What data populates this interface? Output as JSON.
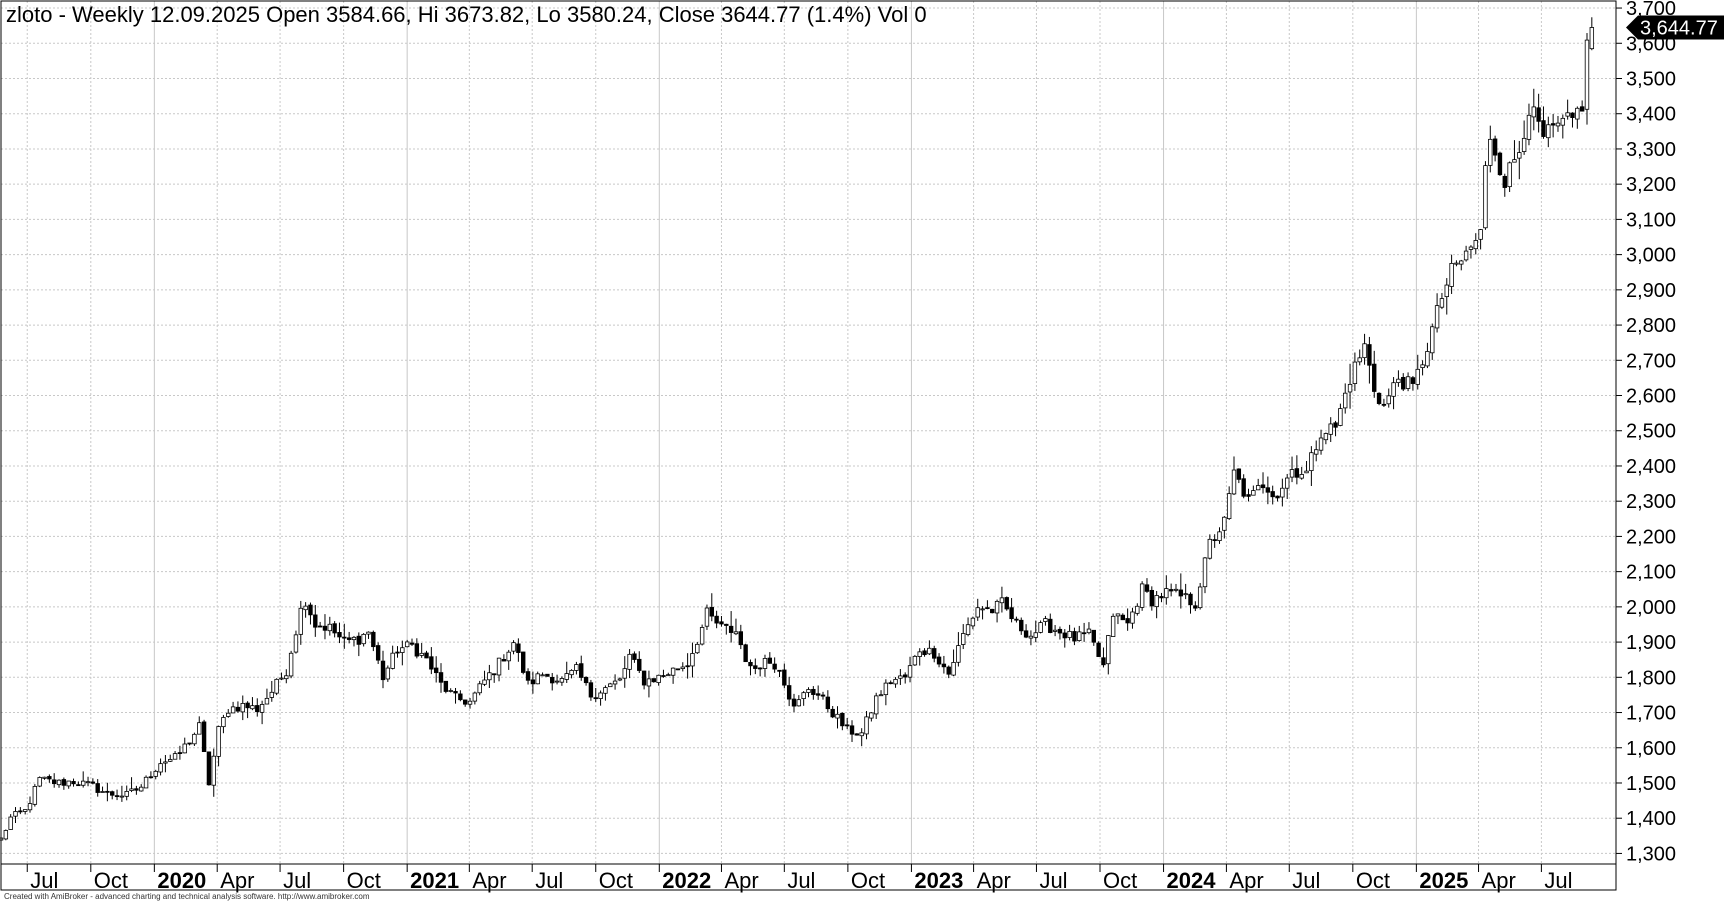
{
  "window": {
    "title": "zloto - Weekly 12.09.2025 Open 3584.66, Hi 3673.82, Lo 3580.24, Close 3644.77 (1.4%) Vol 0",
    "credit": "Created with AmiBroker - advanced charting and technical analysis software. http://www.amibroker.com"
  },
  "chart_data": {
    "type": "candlestick",
    "symbol": "zloto",
    "interval": "Weekly",
    "last_bar": {
      "date": "12.09.2025",
      "open": 3584.66,
      "high": 3673.82,
      "low": 3580.24,
      "close": 3644.77,
      "change_pct": 1.4,
      "volume": 0
    },
    "last_price_tag": "3,644.77",
    "ylim": [
      1270,
      3720
    ],
    "y_ticks": [
      1300,
      1400,
      1500,
      1600,
      1700,
      1800,
      1900,
      2000,
      2100,
      2200,
      2300,
      2400,
      2500,
      2600,
      2700,
      2800,
      2900,
      3000,
      3100,
      3200,
      3300,
      3400,
      3500,
      3600,
      3700
    ],
    "y_tick_labels": [
      "1,300",
      "1,400",
      "1,500",
      "1,600",
      "1,700",
      "1,800",
      "1,900",
      "2,000",
      "2,100",
      "2,200",
      "2,300",
      "2,400",
      "2,500",
      "2,600",
      "2,700",
      "2,800",
      "2,900",
      "3,000",
      "3,100",
      "3,200",
      "3,300",
      "3,400",
      "3,500",
      "3,600",
      "3,700"
    ],
    "xlim": [
      "2019-05-24",
      "2025-10-17"
    ],
    "x_ticks": [
      {
        "date": "2019-07-01",
        "label": "Jul",
        "year": false
      },
      {
        "date": "2019-10-01",
        "label": "Oct",
        "year": false
      },
      {
        "date": "2020-01-01",
        "label": "2020",
        "year": true
      },
      {
        "date": "2020-04-01",
        "label": "Apr",
        "year": false
      },
      {
        "date": "2020-07-01",
        "label": "Jul",
        "year": false
      },
      {
        "date": "2020-10-01",
        "label": "Oct",
        "year": false
      },
      {
        "date": "2021-01-01",
        "label": "2021",
        "year": true
      },
      {
        "date": "2021-04-01",
        "label": "Apr",
        "year": false
      },
      {
        "date": "2021-07-01",
        "label": "Jul",
        "year": false
      },
      {
        "date": "2021-10-01",
        "label": "Oct",
        "year": false
      },
      {
        "date": "2022-01-01",
        "label": "2022",
        "year": true
      },
      {
        "date": "2022-04-01",
        "label": "Apr",
        "year": false
      },
      {
        "date": "2022-07-01",
        "label": "Jul",
        "year": false
      },
      {
        "date": "2022-10-01",
        "label": "Oct",
        "year": false
      },
      {
        "date": "2023-01-01",
        "label": "2023",
        "year": true
      },
      {
        "date": "2023-04-01",
        "label": "Apr",
        "year": false
      },
      {
        "date": "2023-07-01",
        "label": "Jul",
        "year": false
      },
      {
        "date": "2023-10-01",
        "label": "Oct",
        "year": false
      },
      {
        "date": "2024-01-01",
        "label": "2024",
        "year": true
      },
      {
        "date": "2024-04-01",
        "label": "Apr",
        "year": false
      },
      {
        "date": "2024-07-01",
        "label": "Jul",
        "year": false
      },
      {
        "date": "2024-10-01",
        "label": "Oct",
        "year": false
      },
      {
        "date": "2025-01-01",
        "label": "2025",
        "year": true
      },
      {
        "date": "2025-04-01",
        "label": "Apr",
        "year": false
      },
      {
        "date": "2025-07-01",
        "label": "Jul",
        "year": false
      }
    ],
    "grid": true,
    "up_color": "#ffffff",
    "down_color": "#000000",
    "candle_outline": "#000000",
    "grid_color": "#c8c8c8",
    "tag_color": "#000000",
    "close_anchors": [
      [
        "2019-05-24",
        1340
      ],
      [
        "2019-06-07",
        1400
      ],
      [
        "2019-06-28",
        1420
      ],
      [
        "2019-07-19",
        1510
      ],
      [
        "2019-08-16",
        1500
      ],
      [
        "2019-09-06",
        1505
      ],
      [
        "2019-10-04",
        1490
      ],
      [
        "2019-10-25",
        1470
      ],
      [
        "2019-11-22",
        1465
      ],
      [
        "2019-12-13",
        1490
      ],
      [
        "2020-01-10",
        1560
      ],
      [
        "2020-01-31",
        1570
      ],
      [
        "2020-02-21",
        1620
      ],
      [
        "2020-03-06",
        1660
      ],
      [
        "2020-03-20",
        1500
      ],
      [
        "2020-04-03",
        1650
      ],
      [
        "2020-04-17",
        1710
      ],
      [
        "2020-05-08",
        1720
      ],
      [
        "2020-05-29",
        1710
      ],
      [
        "2020-06-19",
        1760
      ],
      [
        "2020-07-10",
        1820
      ],
      [
        "2020-07-31",
        1990
      ],
      [
        "2020-08-07",
        2020
      ],
      [
        "2020-08-21",
        1950
      ],
      [
        "2020-09-11",
        1940
      ],
      [
        "2020-10-02",
        1900
      ],
      [
        "2020-10-23",
        1910
      ],
      [
        "2020-11-06",
        1930
      ],
      [
        "2020-11-27",
        1800
      ],
      [
        "2020-12-18",
        1880
      ],
      [
        "2021-01-08",
        1890
      ],
      [
        "2021-01-29",
        1850
      ],
      [
        "2021-02-19",
        1780
      ],
      [
        "2021-03-12",
        1740
      ],
      [
        "2021-04-02",
        1730
      ],
      [
        "2021-04-23",
        1790
      ],
      [
        "2021-05-14",
        1840
      ],
      [
        "2021-06-04",
        1900
      ],
      [
        "2021-06-25",
        1780
      ],
      [
        "2021-07-16",
        1810
      ],
      [
        "2021-08-13",
        1790
      ],
      [
        "2021-09-03",
        1820
      ],
      [
        "2021-09-24",
        1750
      ],
      [
        "2021-10-15",
        1770
      ],
      [
        "2021-11-05",
        1790
      ],
      [
        "2021-11-19",
        1860
      ],
      [
        "2021-12-10",
        1790
      ],
      [
        "2021-12-31",
        1800
      ],
      [
        "2022-01-21",
        1820
      ],
      [
        "2022-02-11",
        1840
      ],
      [
        "2022-03-04",
        1940
      ],
      [
        "2022-03-11",
        1980
      ],
      [
        "2022-04-01",
        1940
      ],
      [
        "2022-04-22",
        1930
      ],
      [
        "2022-05-13",
        1820
      ],
      [
        "2022-06-03",
        1850
      ],
      [
        "2022-06-24",
        1830
      ],
      [
        "2022-07-15",
        1710
      ],
      [
        "2022-08-05",
        1770
      ],
      [
        "2022-08-19",
        1750
      ],
      [
        "2022-09-09",
        1700
      ],
      [
        "2022-09-30",
        1650
      ],
      [
        "2022-10-21",
        1640
      ],
      [
        "2022-11-11",
        1740
      ],
      [
        "2022-12-02",
        1790
      ],
      [
        "2022-12-23",
        1800
      ],
      [
        "2023-01-13",
        1880
      ],
      [
        "2023-02-03",
        1870
      ],
      [
        "2023-02-24",
        1810
      ],
      [
        "2023-03-17",
        1920
      ],
      [
        "2023-04-07",
        2000
      ],
      [
        "2023-04-28",
        1990
      ],
      [
        "2023-05-12",
        2010
      ],
      [
        "2023-06-02",
        1950
      ],
      [
        "2023-06-23",
        1920
      ],
      [
        "2023-07-14",
        1950
      ],
      [
        "2023-08-04",
        1930
      ],
      [
        "2023-08-25",
        1910
      ],
      [
        "2023-09-15",
        1920
      ],
      [
        "2023-10-06",
        1830
      ],
      [
        "2023-10-20",
        1980
      ],
      [
        "2023-11-10",
        1950
      ],
      [
        "2023-12-01",
        2050
      ],
      [
        "2023-12-15",
        2020
      ],
      [
        "2024-01-05",
        2040
      ],
      [
        "2024-01-26",
        2030
      ],
      [
        "2024-02-16",
        2010
      ],
      [
        "2024-03-08",
        2180
      ],
      [
        "2024-03-29",
        2240
      ],
      [
        "2024-04-12",
        2380
      ],
      [
        "2024-05-03",
        2300
      ],
      [
        "2024-05-24",
        2350
      ],
      [
        "2024-06-14",
        2320
      ],
      [
        "2024-07-05",
        2390
      ],
      [
        "2024-07-26",
        2380
      ],
      [
        "2024-08-16",
        2500
      ],
      [
        "2024-09-06",
        2510
      ],
      [
        "2024-09-27",
        2650
      ],
      [
        "2024-10-18",
        2740
      ],
      [
        "2024-11-01",
        2620
      ],
      [
        "2024-11-15",
        2570
      ],
      [
        "2024-12-06",
        2650
      ],
      [
        "2024-12-27",
        2620
      ],
      [
        "2025-01-17",
        2740
      ],
      [
        "2025-02-07",
        2880
      ],
      [
        "2025-02-21",
        2950
      ],
      [
        "2025-03-14",
        3000
      ],
      [
        "2025-04-04",
        3060
      ],
      [
        "2025-04-11",
        3240
      ],
      [
        "2025-04-18",
        3340
      ],
      [
        "2025-05-09",
        3210
      ],
      [
        "2025-05-30",
        3300
      ],
      [
        "2025-06-13",
        3420
      ],
      [
        "2025-07-04",
        3330
      ],
      [
        "2025-07-25",
        3360
      ],
      [
        "2025-08-15",
        3380
      ],
      [
        "2025-08-29",
        3430
      ],
      [
        "2025-09-05",
        3590
      ],
      [
        "2025-09-12",
        3644.77
      ]
    ]
  }
}
